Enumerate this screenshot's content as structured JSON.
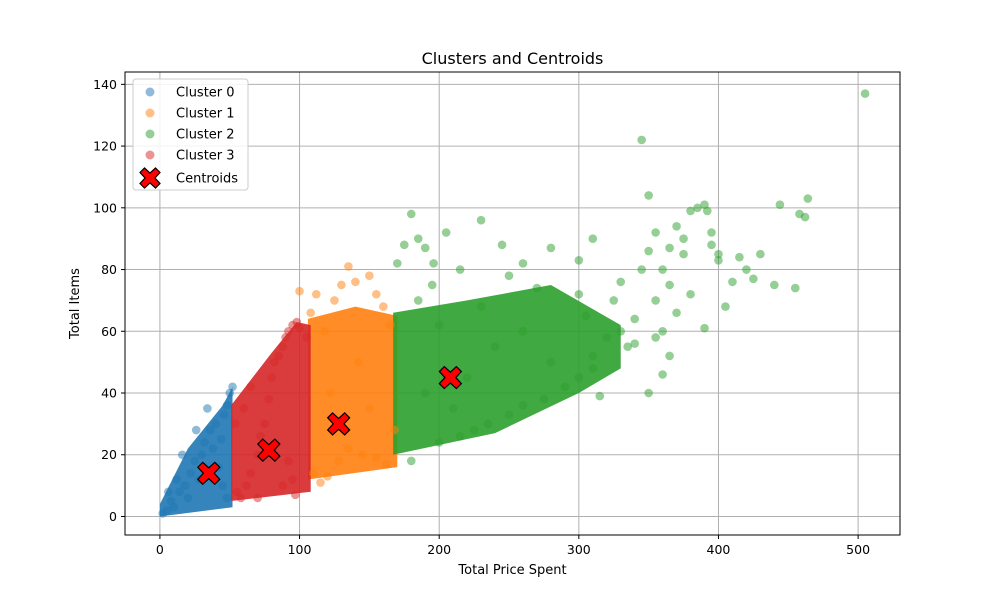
{
  "chart_data": {
    "type": "scatter",
    "title": "Clusters and Centroids",
    "xlabel": "Total Price Spent",
    "ylabel": "Total Items",
    "xlim": [
      -25,
      530
    ],
    "ylim": [
      -6,
      144
    ],
    "x_ticks": [
      0,
      100,
      200,
      300,
      400,
      500
    ],
    "y_ticks": [
      0,
      20,
      40,
      60,
      80,
      100,
      120,
      140
    ],
    "grid": true,
    "legend_position": "top-left",
    "series": [
      {
        "name": "Cluster 0",
        "color": "#1f77b4",
        "marker": "circle",
        "band_x": [
          0,
          52
        ],
        "points": [
          [
            2,
            1
          ],
          [
            5,
            2
          ],
          [
            8,
            5
          ],
          [
            10,
            3
          ],
          [
            14,
            8
          ],
          [
            18,
            10
          ],
          [
            20,
            6
          ],
          [
            22,
            14
          ],
          [
            25,
            18
          ],
          [
            28,
            12
          ],
          [
            30,
            20
          ],
          [
            32,
            24
          ],
          [
            34,
            35
          ],
          [
            36,
            28
          ],
          [
            38,
            22
          ],
          [
            40,
            30
          ],
          [
            42,
            16
          ],
          [
            44,
            25
          ],
          [
            46,
            33
          ],
          [
            48,
            36
          ],
          [
            50,
            40
          ],
          [
            52,
            42
          ],
          [
            12,
            12
          ],
          [
            16,
            20
          ],
          [
            6,
            8
          ],
          [
            26,
            28
          ],
          [
            45,
            10
          ],
          [
            48,
            6
          ]
        ]
      },
      {
        "name": "Cluster 1",
        "color": "#ff7f0e",
        "marker": "circle",
        "band_x": [
          107,
          170
        ],
        "points": [
          [
            100,
            73
          ],
          [
            108,
            66
          ],
          [
            112,
            72
          ],
          [
            118,
            60
          ],
          [
            125,
            70
          ],
          [
            130,
            75
          ],
          [
            135,
            81
          ],
          [
            140,
            76
          ],
          [
            150,
            78
          ],
          [
            155,
            72
          ],
          [
            160,
            68
          ],
          [
            165,
            62
          ],
          [
            110,
            14
          ],
          [
            115,
            11
          ],
          [
            120,
            13
          ],
          [
            128,
            18
          ],
          [
            135,
            22
          ],
          [
            145,
            20
          ],
          [
            155,
            19
          ],
          [
            162,
            17
          ],
          [
            168,
            28
          ],
          [
            142,
            50
          ],
          [
            122,
            40
          ],
          [
            150,
            35
          ]
        ]
      },
      {
        "name": "Cluster 2",
        "color": "#2ca02c",
        "marker": "circle",
        "band_x": [
          165,
          330
        ],
        "points": [
          [
            170,
            82
          ],
          [
            175,
            88
          ],
          [
            180,
            98
          ],
          [
            185,
            90
          ],
          [
            190,
            87
          ],
          [
            196,
            82
          ],
          [
            205,
            92
          ],
          [
            215,
            80
          ],
          [
            230,
            96
          ],
          [
            245,
            88
          ],
          [
            260,
            82
          ],
          [
            280,
            87
          ],
          [
            300,
            83
          ],
          [
            310,
            90
          ],
          [
            345,
            122
          ],
          [
            350,
            104
          ],
          [
            355,
            92
          ],
          [
            360,
            80
          ],
          [
            365,
            87
          ],
          [
            370,
            94
          ],
          [
            375,
            90
          ],
          [
            380,
            99
          ],
          [
            385,
            100
          ],
          [
            390,
            101
          ],
          [
            392,
            99
          ],
          [
            395,
            92
          ],
          [
            400,
            83
          ],
          [
            405,
            68
          ],
          [
            410,
            76
          ],
          [
            415,
            84
          ],
          [
            420,
            80
          ],
          [
            425,
            77
          ],
          [
            430,
            85
          ],
          [
            440,
            75
          ],
          [
            444,
            101
          ],
          [
            455,
            74
          ],
          [
            458,
            98
          ],
          [
            462,
            97
          ],
          [
            464,
            103
          ],
          [
            505,
            137
          ],
          [
            390,
            61
          ],
          [
            350,
            40
          ],
          [
            315,
            39
          ],
          [
            360,
            46
          ],
          [
            335,
            55
          ],
          [
            330,
            60
          ],
          [
            320,
            58
          ],
          [
            180,
            18
          ],
          [
            200,
            24
          ],
          [
            215,
            26
          ],
          [
            225,
            28
          ],
          [
            235,
            30
          ],
          [
            250,
            33
          ],
          [
            260,
            36
          ],
          [
            275,
            38
          ],
          [
            290,
            42
          ],
          [
            300,
            45
          ],
          [
            310,
            48
          ],
          [
            340,
            64
          ],
          [
            355,
            70
          ],
          [
            370,
            66
          ],
          [
            380,
            72
          ],
          [
            395,
            88
          ],
          [
            400,
            85
          ],
          [
            345,
            80
          ],
          [
            330,
            76
          ],
          [
            200,
            62
          ],
          [
            230,
            68
          ],
          [
            270,
            74
          ],
          [
            240,
            55
          ],
          [
            280,
            50
          ],
          [
            220,
            45
          ],
          [
            260,
            60
          ],
          [
            190,
            40
          ],
          [
            210,
            35
          ],
          [
            305,
            65
          ],
          [
            325,
            70
          ],
          [
            355,
            58
          ],
          [
            365,
            75
          ],
          [
            375,
            85
          ],
          [
            185,
            70
          ],
          [
            195,
            75
          ],
          [
            250,
            78
          ],
          [
            300,
            72
          ],
          [
            350,
            86
          ],
          [
            360,
            60
          ],
          [
            365,
            52
          ],
          [
            340,
            56
          ],
          [
            310,
            52
          ]
        ]
      },
      {
        "name": "Cluster 3",
        "color": "#d62728",
        "marker": "circle",
        "band_x": [
          51,
          108
        ],
        "points": [
          [
            55,
            8
          ],
          [
            58,
            6
          ],
          [
            62,
            10
          ],
          [
            65,
            14
          ],
          [
            70,
            20
          ],
          [
            72,
            26
          ],
          [
            75,
            30
          ],
          [
            78,
            38
          ],
          [
            80,
            45
          ],
          [
            82,
            50
          ],
          [
            85,
            52
          ],
          [
            88,
            55
          ],
          [
            90,
            58
          ],
          [
            92,
            60
          ],
          [
            95,
            62
          ],
          [
            98,
            63
          ],
          [
            100,
            61
          ],
          [
            105,
            58
          ],
          [
            97,
            7
          ],
          [
            95,
            12
          ],
          [
            92,
            18
          ],
          [
            88,
            10
          ],
          [
            70,
            6
          ],
          [
            60,
            35
          ],
          [
            65,
            42
          ],
          [
            54,
            30
          ]
        ]
      }
    ],
    "centroids": {
      "name": "Centroids",
      "color": "#ff0000",
      "edge_color": "#000000",
      "marker": "X",
      "points": [
        [
          35,
          14
        ],
        [
          78,
          21.5
        ],
        [
          128,
          30
        ],
        [
          208,
          45
        ]
      ]
    }
  }
}
